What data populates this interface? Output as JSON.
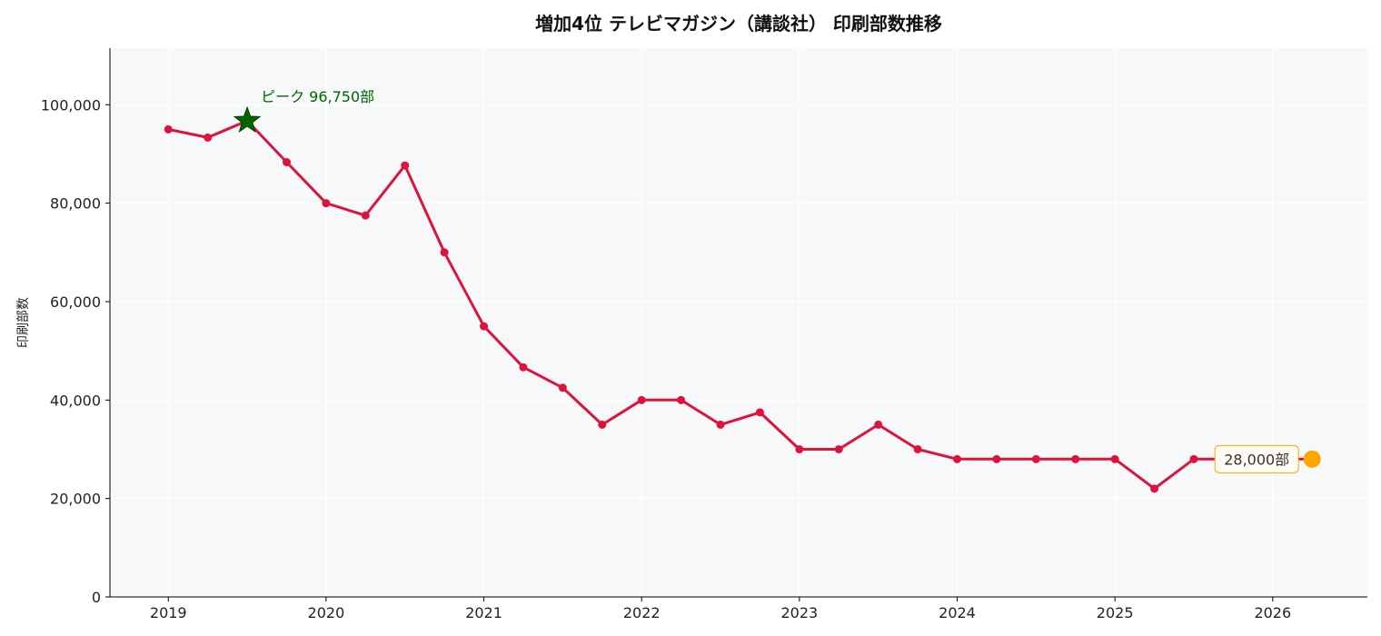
{
  "chart_data": {
    "type": "line",
    "title": "増加4位 テレビマガジン（講談社） 印刷部数推移",
    "ylabel": "印刷部数",
    "xlabel": "",
    "xlim": [
      2018.63,
      2026.6
    ],
    "ylim": [
      0,
      111500
    ],
    "x_ticks": [
      2019,
      2020,
      2021,
      2022,
      2023,
      2024,
      2025,
      2026
    ],
    "x_tick_labels": [
      "2019",
      "2020",
      "2021",
      "2022",
      "2023",
      "2024",
      "2025",
      "2026"
    ],
    "y_ticks": [
      0,
      20000,
      40000,
      60000,
      80000,
      100000
    ],
    "y_tick_labels": [
      "0",
      "20,000",
      "40,000",
      "60,000",
      "80,000",
      "100,000"
    ],
    "grid": true,
    "series": [
      {
        "name": "",
        "color": "#dc143c",
        "points": [
          [
            2019.0,
            95000
          ],
          [
            2019.25,
            93333
          ],
          [
            2019.5,
            96750
          ],
          [
            2019.75,
            88333
          ],
          [
            2020.0,
            80000
          ],
          [
            2020.25,
            77500
          ],
          [
            2020.5,
            87667
          ],
          [
            2020.75,
            70000
          ],
          [
            2021.0,
            55000
          ],
          [
            2021.25,
            46667
          ],
          [
            2021.5,
            42500
          ],
          [
            2021.75,
            35000
          ],
          [
            2022.0,
            40000
          ],
          [
            2022.25,
            40000
          ],
          [
            2022.5,
            35000
          ],
          [
            2022.75,
            37500
          ],
          [
            2023.0,
            30000
          ],
          [
            2023.25,
            30000
          ],
          [
            2023.5,
            35000
          ],
          [
            2023.75,
            30000
          ],
          [
            2024.0,
            28000
          ],
          [
            2024.25,
            28000
          ],
          [
            2024.5,
            28000
          ],
          [
            2024.75,
            28000
          ],
          [
            2025.0,
            28000
          ],
          [
            2025.25,
            22000
          ],
          [
            2025.5,
            28000
          ],
          [
            2025.75,
            28000
          ],
          [
            2026.0,
            28000
          ],
          [
            2026.25,
            28000
          ]
        ]
      }
    ],
    "annotations": {
      "peak": {
        "x": 2019.5,
        "y": 96750,
        "label": "ピーク 96,750部",
        "color": "#006400"
      },
      "latest": {
        "x": 2026.25,
        "y": 28000,
        "label": "28,000部",
        "color": "#ffa500"
      }
    },
    "colors": {
      "plot_background": "#f7f8fa",
      "grid": "#ffffff",
      "axis": "#000000",
      "label_box_border": "#ffa500",
      "label_box_fill": "#fffdf3"
    }
  }
}
